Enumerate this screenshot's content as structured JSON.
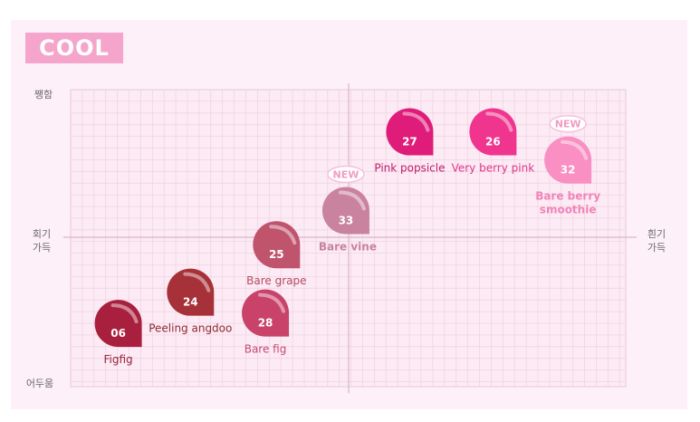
{
  "badge": "COOL",
  "chart_data": {
    "type": "scatter",
    "title": "COOL",
    "axes": {
      "top": "쨍함",
      "bottom": "어두움",
      "left": "회기\n가득",
      "right": "흰기\n가득"
    },
    "xlim": [
      -1,
      1
    ],
    "ylim": [
      -1,
      1
    ],
    "grid": true,
    "points": [
      {
        "num": "06",
        "name": "Figfig",
        "x": -0.83,
        "y": -0.58,
        "color": "#a9203e",
        "label_color": "#9a1f3c",
        "bold": false,
        "new": false,
        "label_pos": "below"
      },
      {
        "num": "24",
        "name": "Peeling angdoo",
        "x": -0.57,
        "y": -0.37,
        "color": "#a73138",
        "label_color": "#8e2a33",
        "bold": false,
        "new": false,
        "label_pos": "below"
      },
      {
        "num": "28",
        "name": "Bare fig",
        "x": -0.3,
        "y": -0.51,
        "color": "#c8426a",
        "label_color": "#c64a70",
        "bold": false,
        "new": false,
        "label_pos": "below"
      },
      {
        "num": "25",
        "name": "Bare grape",
        "x": -0.26,
        "y": -0.05,
        "color": "#c0546d",
        "label_color": "#b24d63",
        "bold": false,
        "new": false,
        "label_pos": "below"
      },
      {
        "num": "33",
        "name": "Bare vine",
        "x": -0.01,
        "y": 0.18,
        "color": "#c9839e",
        "label_color": "#c7839c",
        "bold": true,
        "new": true,
        "label_pos": "below-right"
      },
      {
        "num": "27",
        "name": "Pink popsicle",
        "x": 0.22,
        "y": 0.71,
        "color": "#e01c7a",
        "label_color": "#c11a6a",
        "bold": false,
        "new": false,
        "label_pos": "below"
      },
      {
        "num": "26",
        "name": "Very berry pink",
        "x": 0.52,
        "y": 0.71,
        "color": "#f0358e",
        "label_color": "#e4338a",
        "bold": false,
        "new": false,
        "label_pos": "below"
      },
      {
        "num": "32",
        "name": "Bare berry\nsmoothie",
        "x": 0.79,
        "y": 0.52,
        "color": "#f98fc2",
        "label_color": "#f183b9",
        "bold": true,
        "new": true,
        "label_pos": "below"
      }
    ],
    "new_label": "NEW"
  }
}
